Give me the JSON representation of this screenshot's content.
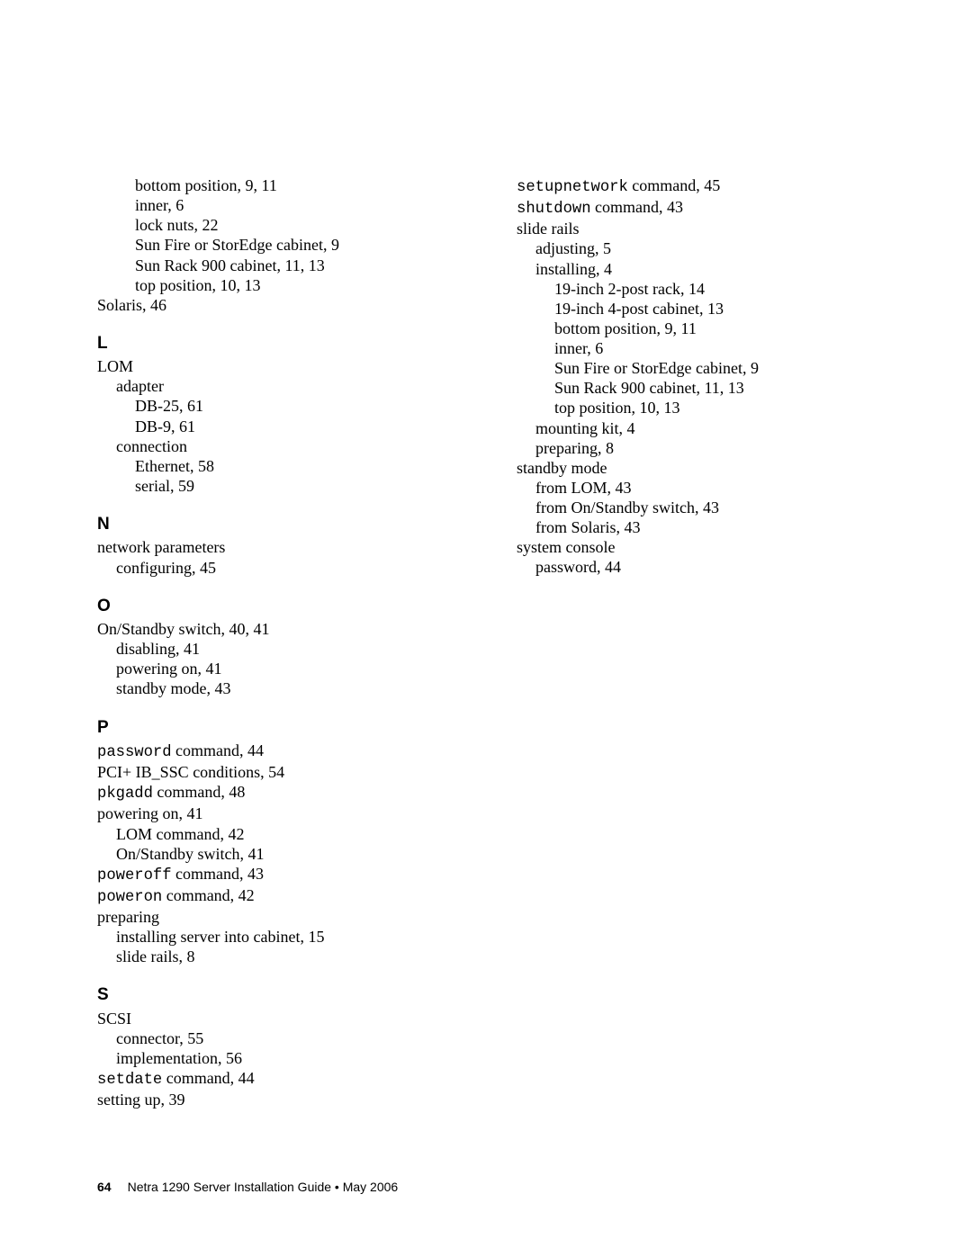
{
  "col1": {
    "top_block": [
      {
        "text": "bottom position,  9, 11",
        "indent": 2
      },
      {
        "text": "inner,  6",
        "indent": 2
      },
      {
        "text": "lock nuts,  22",
        "indent": 2
      },
      {
        "text": "Sun Fire or StorEdge cabinet,  9",
        "indent": 2
      },
      {
        "text": "Sun Rack 900 cabinet,  11, 13",
        "indent": 2
      },
      {
        "text": "top position,  10, 13",
        "indent": 2
      },
      {
        "text": "Solaris,  46",
        "indent": 0
      }
    ],
    "L": {
      "letter": "L",
      "items": [
        {
          "text": "LOM",
          "indent": 0
        },
        {
          "text": "adapter",
          "indent": 1
        },
        {
          "text": "DB-25,  61",
          "indent": 2
        },
        {
          "text": "DB-9,  61",
          "indent": 2
        },
        {
          "text": "connection",
          "indent": 1
        },
        {
          "text": "Ethernet,  58",
          "indent": 2
        },
        {
          "text": "serial,  59",
          "indent": 2
        }
      ]
    },
    "N": {
      "letter": "N",
      "items": [
        {
          "text": "network parameters",
          "indent": 0
        },
        {
          "text": "configuring,  45",
          "indent": 1
        }
      ]
    },
    "O": {
      "letter": "O",
      "items": [
        {
          "text": "On/Standby switch,  40, 41",
          "indent": 0
        },
        {
          "text": "disabling,  41",
          "indent": 1
        },
        {
          "text": "powering on,  41",
          "indent": 1
        },
        {
          "text": "standby mode,  43",
          "indent": 1
        }
      ]
    },
    "P": {
      "letter": "P",
      "items": [
        {
          "mono": "password",
          "rest": " command,  44",
          "indent": 0
        },
        {
          "text": "PCI+ IB_SSC conditions,  54",
          "indent": 0
        },
        {
          "mono": "pkgadd",
          "rest": " command,  48",
          "indent": 0
        },
        {
          "text": "powering on,  41",
          "indent": 0
        },
        {
          "text": "LOM command,  42",
          "indent": 1
        },
        {
          "text": "On/Standby switch,  41",
          "indent": 1
        },
        {
          "mono": "poweroff",
          "rest": " command,  43",
          "indent": 0
        },
        {
          "mono": "poweron",
          "rest": " command,  42",
          "indent": 0
        },
        {
          "text": "preparing",
          "indent": 0
        },
        {
          "text": "installing server into cabinet,  15",
          "indent": 1
        },
        {
          "text": "slide rails,  8",
          "indent": 1
        }
      ]
    },
    "S": {
      "letter": "S",
      "items": [
        {
          "text": "SCSI",
          "indent": 0
        },
        {
          "text": "connector,  55",
          "indent": 1
        },
        {
          "text": "implementation,  56",
          "indent": 1
        },
        {
          "mono": "setdate",
          "rest": " command,  44",
          "indent": 0
        },
        {
          "text": "setting up,  39",
          "indent": 0
        }
      ]
    }
  },
  "col2": {
    "items": [
      {
        "mono": "setupnetwork",
        "rest": " command,  45",
        "indent": 0
      },
      {
        "mono": "shutdown",
        "rest": " command,  43",
        "indent": 0
      },
      {
        "text": "slide rails",
        "indent": 0
      },
      {
        "text": "adjusting,  5",
        "indent": 1
      },
      {
        "text": "installing,  4",
        "indent": 1
      },
      {
        "text": "19-inch 2-post rack,  14",
        "indent": 2
      },
      {
        "text": "19-inch 4-post cabinet,  13",
        "indent": 2
      },
      {
        "text": "bottom position,  9, 11",
        "indent": 2
      },
      {
        "text": "inner,  6",
        "indent": 2
      },
      {
        "text": "Sun Fire or StorEdge cabinet,  9",
        "indent": 2
      },
      {
        "text": "Sun Rack 900 cabinet,  11, 13",
        "indent": 2
      },
      {
        "text": "top position,  10, 13",
        "indent": 2
      },
      {
        "text": "mounting kit,  4",
        "indent": 1
      },
      {
        "text": "preparing,  8",
        "indent": 1
      },
      {
        "text": "standby mode",
        "indent": 0
      },
      {
        "text": "from LOM,  43",
        "indent": 1
      },
      {
        "text": "from On/Standby switch,  43",
        "indent": 1
      },
      {
        "text": "from Solaris,  43",
        "indent": 1
      },
      {
        "text": "system console",
        "indent": 0
      },
      {
        "text": "password,  44",
        "indent": 1
      }
    ]
  },
  "footer": {
    "page_number": "64",
    "title": "Netra 1290 Server Installation Guide  •  May 2006"
  }
}
